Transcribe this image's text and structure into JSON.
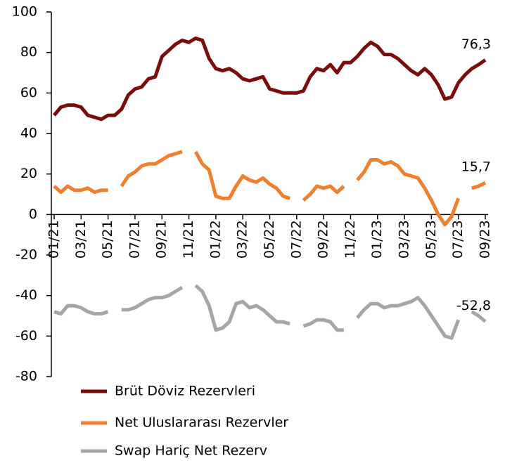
{
  "chart_data": {
    "type": "line",
    "categories": [
      "01/21",
      null,
      null,
      null,
      "03/21",
      null,
      null,
      null,
      "05/21",
      null,
      null,
      null,
      "07/21",
      null,
      null,
      null,
      "09/21",
      null,
      null,
      null,
      "11/21",
      null,
      null,
      null,
      "01/22",
      null,
      null,
      null,
      "03/22",
      null,
      null,
      null,
      "05/22",
      null,
      null,
      null,
      "07/22",
      null,
      null,
      null,
      "09/22",
      null,
      null,
      null,
      "11/22",
      null,
      null,
      null,
      "01/23",
      null,
      null,
      null,
      "03/23",
      null,
      null,
      null,
      "05/23",
      null,
      null,
      null,
      "07/23",
      null,
      null,
      null,
      "09/23"
    ],
    "series": [
      {
        "name": "Brüt Döviz Rezervleri",
        "color": "#7a0c0c",
        "values": [
          49,
          53,
          54,
          54,
          53,
          49,
          48,
          47,
          49,
          49,
          52,
          59,
          62,
          63,
          67,
          68,
          78,
          81,
          84,
          86,
          85,
          87,
          86,
          77,
          72,
          71,
          72,
          70,
          67,
          66,
          67,
          68,
          62,
          61,
          60,
          60,
          60,
          61,
          68,
          72,
          71,
          74,
          70,
          75,
          75,
          78,
          82,
          85,
          83,
          79,
          79,
          77,
          74,
          71,
          69,
          72,
          69,
          64,
          57,
          58,
          65,
          69,
          72,
          74,
          76.3
        ],
        "value_labels": [
          null,
          null,
          null,
          null,
          null,
          null,
          null,
          null,
          null,
          null,
          null,
          null,
          null,
          null,
          null,
          null,
          null,
          null,
          null,
          null,
          null,
          null,
          null,
          null,
          null,
          null,
          null,
          null,
          null,
          null,
          null,
          null,
          null,
          null,
          null,
          null,
          null,
          null,
          null,
          null,
          null,
          null,
          null,
          null,
          null,
          null,
          null,
          null,
          null,
          null,
          null,
          null,
          null,
          null,
          null,
          null,
          null,
          null,
          null,
          null,
          null,
          null,
          null,
          null,
          "76,3"
        ]
      },
      {
        "name": "Net Uluslararası Rezervler",
        "color": "#f07f2f",
        "values": [
          14,
          11,
          14,
          12,
          12,
          13,
          11,
          12,
          12,
          null,
          14,
          19,
          21,
          24,
          25,
          25,
          27,
          29,
          30,
          31,
          null,
          31,
          25,
          22,
          9,
          8,
          8,
          14,
          19,
          17,
          16,
          18,
          15,
          13,
          9,
          8,
          null,
          7,
          10,
          14,
          13,
          14,
          11,
          14,
          null,
          17,
          21,
          27,
          27,
          25,
          26,
          24,
          20,
          19,
          18,
          13,
          7,
          0,
          -5,
          -1,
          8,
          null,
          13,
          14,
          15.7
        ],
        "value_labels": [
          null,
          null,
          null,
          null,
          null,
          null,
          null,
          null,
          null,
          null,
          null,
          null,
          null,
          null,
          null,
          null,
          null,
          null,
          null,
          null,
          null,
          null,
          null,
          null,
          null,
          null,
          null,
          null,
          null,
          null,
          null,
          null,
          null,
          null,
          null,
          null,
          null,
          null,
          null,
          null,
          null,
          null,
          null,
          null,
          null,
          null,
          null,
          null,
          null,
          null,
          null,
          null,
          null,
          null,
          null,
          null,
          null,
          null,
          null,
          null,
          null,
          null,
          null,
          null,
          "15,7"
        ]
      },
      {
        "name": "Swap Hariç Net Rezerv",
        "color": "#a6a6a6",
        "values": [
          -48,
          -49,
          -45,
          -45,
          -46,
          -48,
          -49,
          -49,
          -48,
          null,
          -47,
          -47,
          -46,
          -44,
          -42,
          -41,
          -41,
          -40,
          -38,
          -36,
          null,
          -35,
          -38,
          -45,
          -57,
          -56,
          -53,
          -44,
          -43,
          -46,
          -45,
          -47,
          -50,
          -53,
          -53,
          -54,
          null,
          -55,
          -54,
          -52,
          -52,
          -53,
          -57,
          -57,
          null,
          -51,
          -47,
          -44,
          -44,
          -46,
          -45,
          -45,
          -44,
          -43,
          -41,
          -45,
          -50,
          -55,
          -60,
          -61,
          -52,
          null,
          -48,
          -50,
          -52.8
        ],
        "value_labels": [
          null,
          null,
          null,
          null,
          null,
          null,
          null,
          null,
          null,
          null,
          null,
          null,
          null,
          null,
          null,
          null,
          null,
          null,
          null,
          null,
          null,
          null,
          null,
          null,
          null,
          null,
          null,
          null,
          null,
          null,
          null,
          null,
          null,
          null,
          null,
          null,
          null,
          null,
          null,
          null,
          null,
          null,
          null,
          null,
          null,
          null,
          null,
          null,
          null,
          null,
          null,
          null,
          null,
          null,
          null,
          null,
          null,
          null,
          null,
          null,
          null,
          null,
          null,
          null,
          "-52,8"
        ]
      }
    ],
    "ylim": [
      -80,
      100
    ],
    "yticks": [
      -80,
      -60,
      -40,
      -20,
      0,
      20,
      40,
      60,
      80,
      100
    ],
    "grid": false,
    "legend": "bottom"
  }
}
